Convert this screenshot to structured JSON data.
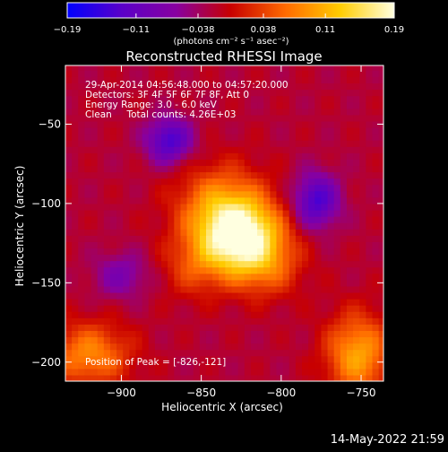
{
  "chart_data": {
    "type": "heatmap",
    "title": "Reconstructed RHESSI Image",
    "xlabel": "Heliocentric X (arcsec)",
    "ylabel": "Heliocentric Y (arcsec)",
    "xlim": [
      -935,
      -736
    ],
    "ylim": [
      -212,
      -13
    ],
    "x_ticks": [
      -900,
      -850,
      -800,
      -750
    ],
    "y_ticks": [
      -200,
      -150,
      -100,
      -50
    ],
    "x_tick_labels": [
      "−900",
      "−850",
      "−800",
      "−750"
    ],
    "y_tick_labels": [
      "−200",
      "−150",
      "−100",
      "−50"
    ],
    "colorbar": {
      "range": [
        -0.19,
        0.19
      ],
      "ticks": [
        -0.19,
        -0.11,
        -0.038,
        0.038,
        0.11,
        0.19
      ],
      "tick_labels": [
        "−0.19",
        "−0.11",
        "−0.038",
        "0.038",
        "0.11",
        "0.19"
      ],
      "unit_label": "(photons cm⁻² s⁻¹ asec⁻²)",
      "colors": [
        "#0000ff",
        "#5a00c8",
        "#8800a0",
        "#c80000",
        "#ff6a00",
        "#ffcc00",
        "#ffffe0"
      ]
    },
    "annotations": {
      "time_range": "29-Apr-2014 04:56:48.000 to 04:57:20.000",
      "detectors": "Detectors: 3F 4F 5F 6F 7F 8F, Att 0",
      "energy_range": "Energy Range: 3.0 - 6.0 keV",
      "clean_counts": "Clean     Total counts: 4.26E+03",
      "peak_position": "Position of Peak = [-826,-121]"
    },
    "peak": {
      "x": -826,
      "y": -121,
      "value": 0.19
    },
    "background_level": -0.02
  },
  "footer": {
    "timestamp": "14-May-2022 21:59"
  }
}
